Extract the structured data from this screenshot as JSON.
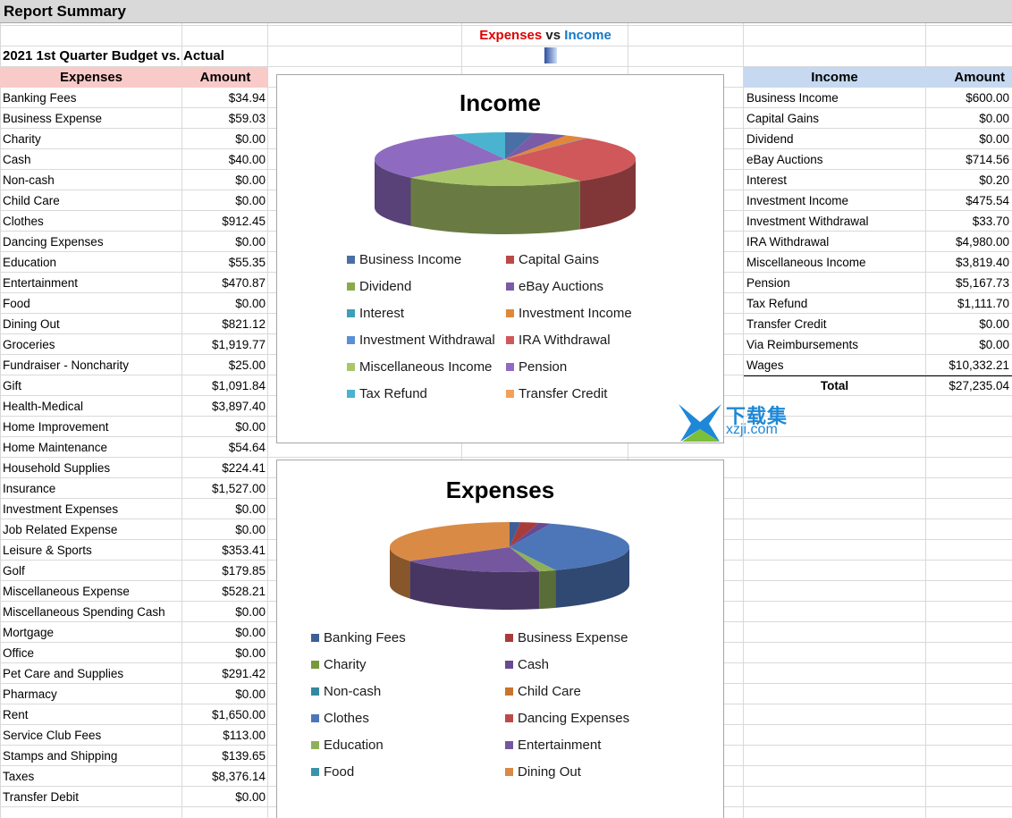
{
  "sheet": {
    "title": "Report Summary",
    "subtitle": "2021 1st Quarter Budget vs. Actual",
    "chart_heading": {
      "expenses": "Expenses",
      "vs": "vs",
      "income": "Income"
    }
  },
  "expenses": {
    "headers": [
      "Expenses",
      "Amount"
    ],
    "rows": [
      {
        "label": "Banking Fees",
        "amount": "$34.94"
      },
      {
        "label": "Business Expense",
        "amount": "$59.03"
      },
      {
        "label": "Charity",
        "amount": "$0.00"
      },
      {
        "label": "Cash",
        "amount": "$40.00"
      },
      {
        "label": "Non-cash",
        "amount": "$0.00"
      },
      {
        "label": "Child Care",
        "amount": "$0.00"
      },
      {
        "label": "Clothes",
        "amount": "$912.45"
      },
      {
        "label": "Dancing Expenses",
        "amount": "$0.00"
      },
      {
        "label": "Education",
        "amount": "$55.35"
      },
      {
        "label": "Entertainment",
        "amount": "$470.87"
      },
      {
        "label": "Food",
        "amount": "$0.00"
      },
      {
        "label": "Dining Out",
        "amount": "$821.12"
      },
      {
        "label": "Groceries",
        "amount": "$1,919.77"
      },
      {
        "label": "Fundraiser - Noncharity",
        "amount": "$25.00"
      },
      {
        "label": "Gift",
        "amount": "$1,091.84"
      },
      {
        "label": "Health-Medical",
        "amount": "$3,897.40"
      },
      {
        "label": "Home Improvement",
        "amount": "$0.00"
      },
      {
        "label": "Home Maintenance",
        "amount": "$54.64"
      },
      {
        "label": "Household Supplies",
        "amount": "$224.41"
      },
      {
        "label": "Insurance",
        "amount": "$1,527.00"
      },
      {
        "label": "Investment Expenses",
        "amount": "$0.00"
      },
      {
        "label": "Job Related Expense",
        "amount": "$0.00"
      },
      {
        "label": "Leisure & Sports",
        "amount": "$353.41"
      },
      {
        "label": "Golf",
        "amount": "$179.85"
      },
      {
        "label": "Miscellaneous Expense",
        "amount": "$528.21"
      },
      {
        "label": "Miscellaneous Spending Cash",
        "amount": "$0.00"
      },
      {
        "label": "Mortgage",
        "amount": "$0.00"
      },
      {
        "label": "Office",
        "amount": "$0.00"
      },
      {
        "label": "Pet Care and Supplies",
        "amount": "$291.42"
      },
      {
        "label": "Pharmacy",
        "amount": "$0.00"
      },
      {
        "label": "Rent",
        "amount": "$1,650.00"
      },
      {
        "label": "Service Club Fees",
        "amount": "$113.00"
      },
      {
        "label": "Stamps and Shipping",
        "amount": "$139.65"
      },
      {
        "label": "Taxes",
        "amount": "$8,376.14"
      },
      {
        "label": "Transfer Debit",
        "amount": "$0.00"
      }
    ]
  },
  "income": {
    "headers": [
      "Income",
      "Amount"
    ],
    "rows": [
      {
        "label": "Business Income",
        "amount": "$600.00"
      },
      {
        "label": "Capital Gains",
        "amount": "$0.00"
      },
      {
        "label": "Dividend",
        "amount": "$0.00"
      },
      {
        "label": "eBay Auctions",
        "amount": "$714.56"
      },
      {
        "label": "Interest",
        "amount": "$0.20"
      },
      {
        "label": "Investment Income",
        "amount": "$475.54"
      },
      {
        "label": "Investment Withdrawal",
        "amount": "$33.70"
      },
      {
        "label": "IRA Withdrawal",
        "amount": "$4,980.00"
      },
      {
        "label": "Miscellaneous Income",
        "amount": "$3,819.40"
      },
      {
        "label": "Pension",
        "amount": "$5,167.73"
      },
      {
        "label": "Tax Refund",
        "amount": "$1,111.70"
      },
      {
        "label": "Transfer Credit",
        "amount": "$0.00"
      },
      {
        "label": "Via Reimbursements",
        "amount": "$0.00"
      },
      {
        "label": "Wages",
        "amount": "$10,332.21"
      }
    ],
    "total_label": "Total",
    "total_amount": "$27,235.04"
  },
  "watermark": {
    "line1": "下载集",
    "line2": "xzji.com"
  },
  "chart_data": [
    {
      "type": "pie",
      "title": "Income",
      "legend_position": "bottom",
      "categories": [
        "Business Income",
        "Capital Gains",
        "Dividend",
        "eBay Auctions",
        "Interest",
        "Investment Income",
        "Investment Withdrawal",
        "IRA Withdrawal",
        "Miscellaneous Income",
        "Pension",
        "Tax Refund",
        "Transfer Credit"
      ],
      "values": [
        600.0,
        0.0,
        0.0,
        714.56,
        0.2,
        475.54,
        33.7,
        4980.0,
        3819.4,
        5167.73,
        1111.7,
        0.0
      ],
      "colors": [
        "#4a6fa5",
        "#b94a48",
        "#8aab4a",
        "#7a5ba8",
        "#3f9fb8",
        "#e0873a",
        "#5b8fd6",
        "#d0585a",
        "#a9c76a",
        "#8e6bc0",
        "#4ab3cf",
        "#f2a05a"
      ]
    },
    {
      "type": "pie",
      "title": "Expenses",
      "legend_position": "bottom",
      "categories": [
        "Banking Fees",
        "Business Expense",
        "Charity",
        "Cash",
        "Non-cash",
        "Child Care",
        "Clothes",
        "Dancing Expenses",
        "Education",
        "Entertainment",
        "Food",
        "Dining Out"
      ],
      "values": [
        34.94,
        59.03,
        0.0,
        40.0,
        0.0,
        0.0,
        912.45,
        0.0,
        55.35,
        470.87,
        0.0,
        821.12
      ],
      "colors": [
        "#3e5f96",
        "#a83c3a",
        "#769a3c",
        "#674a92",
        "#33889e",
        "#c8742c",
        "#4d76b8",
        "#bd4a48",
        "#8fb05a",
        "#74579e",
        "#3a93ab",
        "#d98a45"
      ]
    }
  ]
}
